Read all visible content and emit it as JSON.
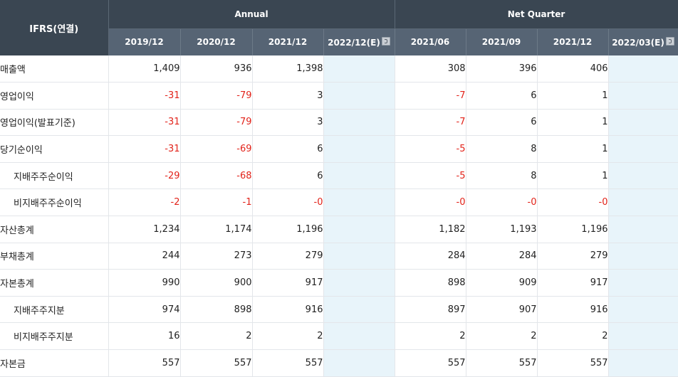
{
  "table": {
    "corner_label": "IFRS(연결)",
    "groups": {
      "annual": "Annual",
      "quarter": "Net Quarter"
    },
    "columns": [
      "2019/12",
      "2020/12",
      "2021/12",
      "2022/12(E)",
      "2021/06",
      "2021/09",
      "2021/12",
      "2022/03(E)"
    ],
    "rows": [
      {
        "label": "매출액",
        "indent": false,
        "values": [
          "1,409",
          "936",
          "1,398",
          "",
          "308",
          "396",
          "406",
          ""
        ]
      },
      {
        "label": "영업이익",
        "indent": false,
        "values": [
          "-31",
          "-79",
          "3",
          "",
          "-7",
          "6",
          "1",
          ""
        ]
      },
      {
        "label": "영업이익(발표기준)",
        "indent": false,
        "values": [
          "-31",
          "-79",
          "3",
          "",
          "-7",
          "6",
          "1",
          ""
        ]
      },
      {
        "label": "당기순이익",
        "indent": false,
        "values": [
          "-31",
          "-69",
          "6",
          "",
          "-5",
          "8",
          "1",
          ""
        ]
      },
      {
        "label": "지배주주순이익",
        "indent": true,
        "values": [
          "-29",
          "-68",
          "6",
          "",
          "-5",
          "8",
          "1",
          ""
        ]
      },
      {
        "label": "비지배주주순이익",
        "indent": true,
        "values": [
          "-2",
          "-1",
          "-0",
          "",
          "-0",
          "-0",
          "-0",
          ""
        ]
      },
      {
        "label": "자산총계",
        "indent": false,
        "values": [
          "1,234",
          "1,174",
          "1,196",
          "",
          "1,182",
          "1,193",
          "1,196",
          ""
        ]
      },
      {
        "label": "부채총계",
        "indent": false,
        "values": [
          "244",
          "273",
          "279",
          "",
          "284",
          "284",
          "279",
          ""
        ]
      },
      {
        "label": "자본총계",
        "indent": false,
        "values": [
          "990",
          "900",
          "917",
          "",
          "898",
          "909",
          "917",
          ""
        ]
      },
      {
        "label": "지배주주지분",
        "indent": true,
        "values": [
          "974",
          "898",
          "916",
          "",
          "897",
          "907",
          "916",
          ""
        ]
      },
      {
        "label": "비지배주주지분",
        "indent": true,
        "values": [
          "16",
          "2",
          "2",
          "",
          "2",
          "2",
          "2",
          ""
        ]
      },
      {
        "label": "자본금",
        "indent": false,
        "values": [
          "557",
          "557",
          "557",
          "",
          "557",
          "557",
          "557",
          ""
        ]
      }
    ],
    "colors": {
      "header_dark": "#3a4652",
      "header_sub": "#566474",
      "negative": "#e2231a",
      "estimate_bg": "#e8f4fa"
    },
    "icons": {
      "estimate_help": "help-icon"
    }
  }
}
